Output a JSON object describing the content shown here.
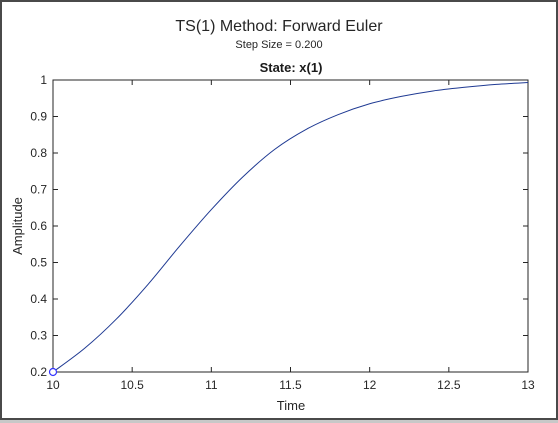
{
  "chart_data": {
    "type": "line",
    "title": "TS(1) Method: Forward Euler",
    "subtitle": "Step Size = 0.200",
    "subplot_title": "State: x(1)",
    "xlabel": "Time",
    "ylabel": "Amplitude",
    "xlim": [
      10,
      13
    ],
    "ylim": [
      0.2,
      1
    ],
    "xticks": [
      10,
      10.5,
      11,
      11.5,
      12,
      12.5,
      13
    ],
    "xtick_labels": [
      "10",
      "10.5",
      "11",
      "11.5",
      "12",
      "12.5",
      "13"
    ],
    "yticks": [
      0.2,
      0.3,
      0.4,
      0.5,
      0.6,
      0.7,
      0.8,
      0.9,
      1
    ],
    "ytick_labels": [
      "0.2",
      "0.3",
      "0.4",
      "0.5",
      "0.6",
      "0.7",
      "0.8",
      "0.9",
      "1"
    ],
    "grid": false,
    "line_color": "#1f3a93",
    "marker_color": "#3333ff",
    "series": [
      {
        "x": [
          10.0,
          10.2,
          10.4,
          10.6,
          10.8,
          11.0,
          11.2,
          11.4,
          11.6,
          11.8,
          12.0,
          12.2,
          12.4,
          12.6,
          12.8,
          13.0
        ],
        "values": [
          0.2,
          0.265,
          0.345,
          0.44,
          0.545,
          0.645,
          0.735,
          0.81,
          0.865,
          0.905,
          0.935,
          0.955,
          0.97,
          0.98,
          0.988,
          0.993
        ]
      }
    ],
    "start_marker": {
      "x": 10.0,
      "y": 0.2
    }
  }
}
